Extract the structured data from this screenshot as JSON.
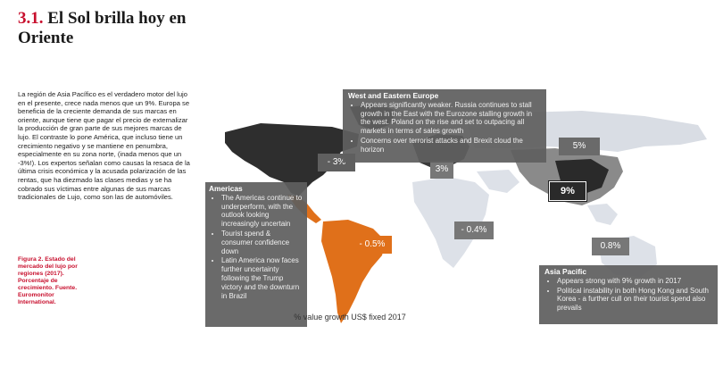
{
  "header": {
    "number": "3.1.",
    "title": "El Sol brilla hoy en Oriente"
  },
  "article": {
    "body": "La región de Asia Pacífico es el verdadero motor del lujo en el presente, crece nada menos que un 9%. Europa se beneficia de la creciente demanda de sus marcas en oriente, aunque tiene que pagar el precio de externalizar la producción de gran parte de sus mejores marcas de lujo. El contraste lo pone América, que incluso tiene un crecimiento negativo y se mantiene en penumbra, especialmente en su zona norte, (inada menos que un -3%!). Los expertos señalan como causas la resaca de la última crisis económica y la acusada polarización de las rentas, que ha diezmado las clases medias y se ha cobrado sus víctimas entre algunas de sus marcas tradicionales de Lujo, como son las de automóviles.",
    "caption": "Figura 2. Estado del mercado del lujo por regiones (2017). Porcentaje de crecimiento. Fuente. Euromonitor International."
  },
  "figure": {
    "footer": "% value growth US$ fixed 2017",
    "colors": {
      "box": "#5f5f5f",
      "orange": "#e0701a",
      "land_light": "#dde1e8",
      "land_dark": "#2a2a2a",
      "land_mid": "#8a8a8a"
    },
    "regions": {
      "west_east_europe": {
        "title": "West and Eastern Europe",
        "points": [
          "Appears significantly weaker. Russia continues to stall growth in the East with the Eurozone stalling growth in the west. Poland on the rise and set to outpacing all markets in terms of sales growth",
          "Concerns over terrorist attacks and Brexit cloud the horizon"
        ]
      },
      "americas": {
        "title": "Americas",
        "points": [
          "The Americas continue to underperform, with the outlook looking increasingly uncertain",
          "Tourist spend & consumer confidence down",
          "Latin America now faces further uncertainty following the Trump victory and the downturn in Brazil"
        ]
      },
      "asia_pacific": {
        "title": "Asia Pacific",
        "points": [
          "Appears strong with 9% growth in 2017",
          "Political instability in both Hong Kong and South Korea - a further cull on their tourist spend also prevails"
        ]
      }
    },
    "growth_labels": {
      "north_america": "- 3%",
      "europe": "3%",
      "russia": "5%",
      "asia_pacific": "9%",
      "latin_america": "- 0.5%",
      "middle_east_africa": "- 0.4%",
      "australasia": "0.8%"
    }
  }
}
